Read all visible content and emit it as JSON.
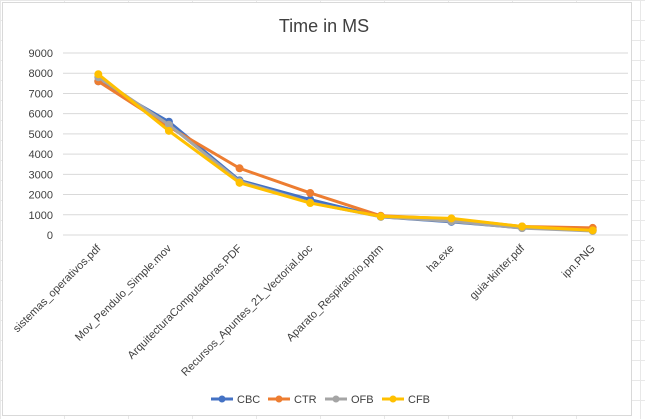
{
  "chart_data": {
    "type": "line",
    "title": "Time in MS",
    "xlabel": "",
    "ylabel": "",
    "ylim": [
      0,
      9000
    ],
    "yticks": [
      0,
      1000,
      2000,
      3000,
      4000,
      5000,
      6000,
      7000,
      8000,
      9000
    ],
    "grid": true,
    "legend": "bottom",
    "categories": [
      "sistemas_operativos.pdf",
      "Mov_Pendulo_Simple.mov",
      "ArquitecturaComputadoras.PDF",
      "Recursos_Apuntes_21_Vectorial.doc",
      "Aparato_Respiratorio.pptm",
      "ha.exe",
      "guia-tkinter.pdf",
      "ipn.PNG"
    ],
    "series": [
      {
        "name": "CBC",
        "color": "#4472C4",
        "values": [
          7600,
          5600,
          2700,
          1750,
          900,
          650,
          350,
          250
        ]
      },
      {
        "name": "CTR",
        "color": "#ED7D31",
        "values": [
          7600,
          5350,
          3300,
          2080,
          950,
          800,
          420,
          350
        ]
      },
      {
        "name": "OFB",
        "color": "#A5A5A5",
        "values": [
          7800,
          5450,
          2650,
          1600,
          900,
          680,
          340,
          200
        ]
      },
      {
        "name": "CFB",
        "color": "#FFC000",
        "values": [
          7950,
          5150,
          2580,
          1580,
          920,
          820,
          420,
          230
        ]
      }
    ]
  }
}
